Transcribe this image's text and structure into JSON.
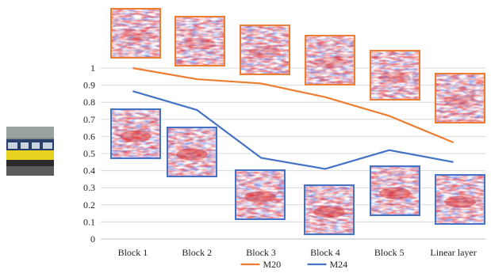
{
  "chart_data": {
    "type": "line",
    "categories": [
      "Block 1",
      "Block 2",
      "Block 3",
      "Block 4",
      "Block 5",
      "Linear layer"
    ],
    "series": [
      {
        "name": "M20",
        "color": "#ED7D31",
        "values": [
          1.0,
          0.935,
          0.91,
          0.83,
          0.72,
          0.565
        ]
      },
      {
        "name": "M24",
        "color": "#4472C4",
        "values": [
          0.865,
          0.755,
          0.475,
          0.41,
          0.52,
          0.45
        ]
      }
    ],
    "ylim": [
      0,
      1
    ],
    "yticks": [
      "0",
      "0.1",
      "0.2",
      "0.3",
      "0.4",
      "0.5",
      "0.6",
      "0.7",
      "0.8",
      "0.9",
      "1"
    ],
    "grid": true,
    "legend": "bottom-center",
    "saliency_border_colors": {
      "M20": "#ED7D31",
      "M24": "#4472C4"
    }
  }
}
